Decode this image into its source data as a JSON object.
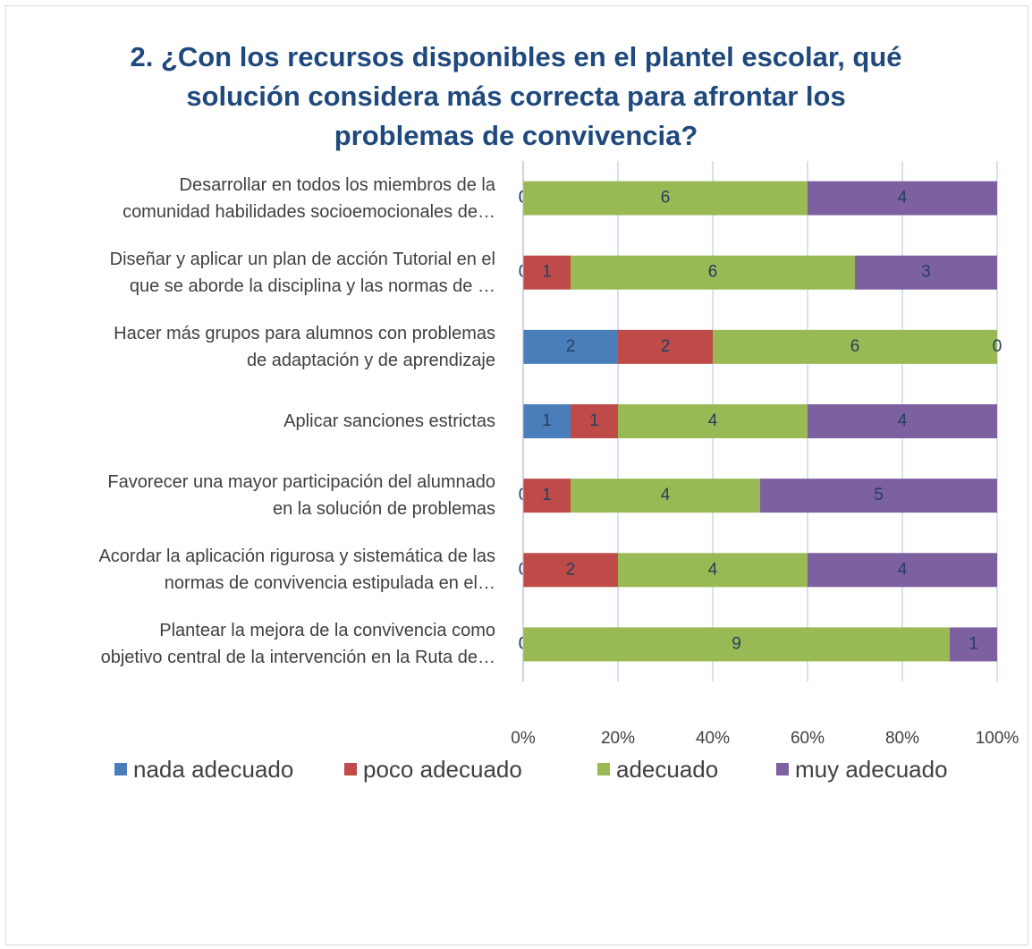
{
  "chart_data": {
    "type": "bar",
    "orientation": "horizontal",
    "stacked": "percent",
    "title": "2. ¿Con los recursos disponibles en el plantel escolar, qué\nsolución considera más correcta para afrontar los\nproblemas de convivencia?",
    "categories": [
      "Desarrollar en todos los miembros de la\ncomunidad habilidades socioemocionales de…",
      "Diseñar y aplicar un plan de acción Tutorial  en el\nque se aborde la disciplina y las normas de …",
      "Hacer más grupos para alumnos con problemas\nde adaptación  y de aprendizaje",
      "Aplicar sanciones estrictas",
      "Favorecer una mayor  participación del alumnado\nen la solución de problemas",
      "Acordar la aplicación rigurosa y sistemática  de las\nnormas de convivencia estipulada en el…",
      "Plantear la mejora de la convivencia como\nobjetivo central de la intervención en la Ruta de…"
    ],
    "series": [
      {
        "name": "nada adecuado",
        "color": "#4a7ebb",
        "values": [
          0,
          0,
          2,
          1,
          0,
          0,
          0
        ]
      },
      {
        "name": "poco adecuado",
        "color": "#be4b48",
        "values": [
          0,
          1,
          2,
          1,
          1,
          2,
          0
        ]
      },
      {
        "name": "adecuado",
        "color": "#98b954",
        "values": [
          6,
          6,
          6,
          4,
          4,
          4,
          9
        ]
      },
      {
        "name": "muy adecuado",
        "color": "#7d60a0",
        "values": [
          4,
          3,
          0,
          4,
          5,
          4,
          1
        ]
      }
    ],
    "xlim": [
      0,
      100
    ],
    "xticks": [
      {
        "value": 0,
        "label": "0%"
      },
      {
        "value": 20,
        "label": "20%"
      },
      {
        "value": 40,
        "label": "40%"
      },
      {
        "value": 60,
        "label": "60%"
      },
      {
        "value": 80,
        "label": "80%"
      },
      {
        "value": 100,
        "label": "100%"
      }
    ],
    "grid": true,
    "legend": "bottom"
  }
}
